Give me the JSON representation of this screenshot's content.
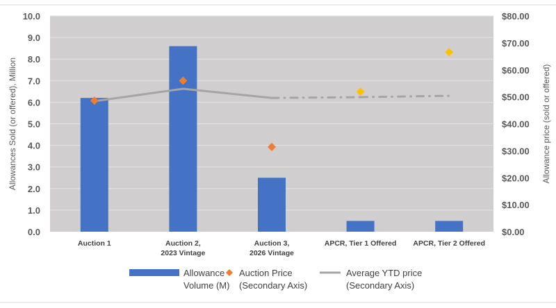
{
  "chart_data": {
    "type": "bar",
    "title": "",
    "categories": [
      [
        "Auction 1"
      ],
      [
        "Auction 2,",
        "2023 Vintage"
      ],
      [
        "Auction 3,",
        "2026 Vintage"
      ],
      [
        "APCR, Tier 1 Offered"
      ],
      [
        "APCR, Tier 2 Offered"
      ]
    ],
    "ylabel": "Allowances Sold (or offered), Million",
    "y2label": "Allowance price (sold or offered)",
    "ylim": [
      0,
      10
    ],
    "y2lim": [
      0,
      80
    ],
    "yticks": [
      "0.0",
      "1.0",
      "2.0",
      "3.0",
      "4.0",
      "5.0",
      "6.0",
      "7.0",
      "8.0",
      "9.0",
      "10.0"
    ],
    "y2ticks": [
      "$0.00",
      "$10.00",
      "$20.00",
      "$30.00",
      "$40.00",
      "$50.00",
      "$60.00",
      "$70.00",
      "$80.00"
    ],
    "grid": true,
    "legend_position": "bottom",
    "plot_background": "#d0cece",
    "series": [
      {
        "name": [
          "Allowance",
          "Volume (M)"
        ],
        "type": "bar",
        "axis": "primary",
        "color": "#4472c4",
        "values": [
          6.2,
          8.6,
          2.5,
          0.5,
          0.5
        ]
      },
      {
        "name": [
          "Auction Price",
          "(Secondary Axis)"
        ],
        "type": "scatter",
        "marker": "diamond",
        "axis": "secondary",
        "colors": [
          "#ed7d31",
          "#ed7d31",
          "#ed7d31",
          "#ffc000",
          "#ffc000"
        ],
        "values": [
          48.6,
          56.0,
          31.4,
          51.9,
          66.6
        ]
      },
      {
        "name": [
          "Average YTD price",
          "(Secondary Axis)"
        ],
        "type": "line",
        "axis": "secondary",
        "color": "#a5a5a5",
        "values": [
          48.4,
          53.0,
          49.6,
          49.9,
          50.4
        ],
        "style": [
          "solid",
          "solid",
          "dash-dot",
          "dash-dot"
        ]
      }
    ]
  }
}
